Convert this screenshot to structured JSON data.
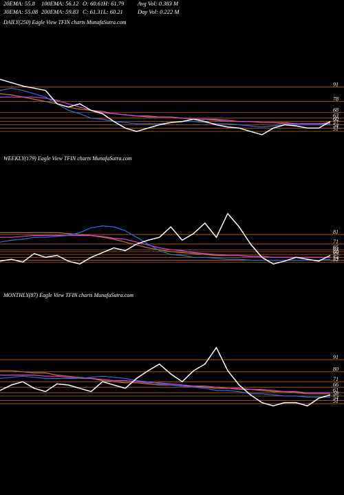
{
  "header": {
    "rows": [
      [
        "20EMA: 55.8",
        "100EMA: 56.12",
        "O: 60.61",
        "H: 61.79",
        "Avg Vol: 0.383  M"
      ],
      [
        "30EMA: 55.08",
        "200EMA: 59.83",
        "C: 61.31",
        "L: 60.21",
        "Day Vol: 0.222  M"
      ]
    ]
  },
  "chart_data": [
    {
      "type": "line",
      "title": "DAILY(250) Eagle  View  TFIN  charts MunafaSutra.com",
      "ylim": [
        30,
        151
      ],
      "yticks": [
        91,
        78,
        68,
        63,
        60,
        57,
        54,
        51
      ],
      "tick_color": "#b5651d",
      "categories": [
        null,
        null,
        null,
        null,
        null,
        null,
        null,
        null,
        null,
        null,
        null,
        null,
        null,
        null,
        null,
        null,
        null,
        null,
        null,
        null,
        null,
        null,
        null,
        null,
        null,
        null,
        null,
        null,
        null,
        null
      ],
      "series": [
        {
          "color": "#c07a30",
          "values": [
            85,
            84,
            82,
            80,
            78,
            76,
            73,
            71,
            70,
            69,
            67,
            66,
            65,
            65,
            64,
            64,
            63,
            62,
            62,
            61,
            60,
            60,
            60,
            59,
            59,
            59,
            58,
            58,
            58,
            58
          ]
        },
        {
          "color": "#e040e0",
          "values": [
            82,
            82,
            82,
            82,
            81,
            79,
            76,
            73,
            70,
            68,
            67,
            66,
            65,
            64,
            64,
            64,
            63,
            62,
            62,
            62,
            61,
            60,
            60,
            59,
            59,
            58,
            58,
            58,
            58,
            59
          ]
        },
        {
          "color": "#2f6fe0",
          "values": [
            88,
            90,
            88,
            85,
            82,
            76,
            70,
            67,
            63,
            62,
            60,
            59,
            58,
            58,
            58,
            59,
            60,
            60,
            59,
            58,
            58,
            57,
            56,
            55,
            56,
            57,
            57,
            57,
            57,
            57
          ]
        },
        {
          "color": "#ffffff",
          "values": [
            98,
            95,
            92,
            90,
            88,
            76,
            73,
            76,
            70,
            67,
            60,
            54,
            51,
            54,
            57,
            59,
            60,
            62,
            60,
            57,
            55,
            54,
            51,
            48,
            54,
            57,
            56,
            54,
            54,
            60
          ]
        }
      ]
    },
    {
      "type": "line",
      "title": "WEEKLY(179) Eagle  View  TFIN  charts MunafaSutra.com",
      "ylim": [
        24,
        154
      ],
      "yticks": [
        81,
        71,
        65,
        63,
        60,
        57,
        54,
        52
      ],
      "tick_color": "#b5651d",
      "categories": [
        null,
        null,
        null,
        null,
        null,
        null,
        null,
        null,
        null,
        null,
        null,
        null,
        null,
        null,
        null,
        null,
        null,
        null,
        null,
        null,
        null,
        null,
        null,
        null,
        null,
        null,
        null,
        null,
        null,
        null
      ],
      "series": [
        {
          "color": "#c07a30",
          "values": [
            83,
            83,
            83,
            83,
            83,
            83,
            82,
            81,
            80,
            78,
            76,
            73,
            70,
            67,
            65,
            63,
            62,
            61,
            60,
            59,
            59,
            59,
            58,
            58,
            57,
            57,
            57,
            57,
            57,
            57
          ]
        },
        {
          "color": "#e040e0",
          "values": [
            78,
            78,
            79,
            80,
            80,
            80,
            80,
            80,
            80,
            79,
            77,
            76,
            73,
            70,
            67,
            65,
            64,
            62,
            61,
            60,
            59,
            59,
            58,
            58,
            57,
            57,
            57,
            57,
            57,
            57
          ]
        },
        {
          "color": "#2f6fe0",
          "values": [
            73,
            75,
            76,
            78,
            78,
            79,
            80,
            83,
            88,
            90,
            89,
            85,
            78,
            71,
            64,
            60,
            59,
            57,
            57,
            56,
            55,
            55,
            54,
            54,
            54,
            54,
            54,
            54,
            54,
            55
          ]
        },
        {
          "color": "#ffffff",
          "values": [
            53,
            55,
            52,
            61,
            57,
            59,
            53,
            50,
            57,
            62,
            67,
            64,
            71,
            75,
            78,
            89,
            75,
            82,
            93,
            78,
            103,
            89,
            71,
            57,
            50,
            53,
            57,
            55,
            53,
            59
          ]
        }
      ]
    },
    {
      "type": "line",
      "title": "MONTHLY(87) Eagle  View  TFIN  charts MunafaSutra.com",
      "ylim": [
        43,
        143
      ],
      "yticks": [
        91,
        80,
        71,
        66,
        61,
        58,
        54,
        51
      ],
      "tick_color": "#b5651d",
      "categories": [
        null,
        null,
        null,
        null,
        null,
        null,
        null,
        null,
        null,
        null,
        null,
        null,
        null,
        null,
        null,
        null,
        null,
        null,
        null,
        null,
        null,
        null,
        null,
        null,
        null,
        null,
        null,
        null,
        null,
        null
      ],
      "series": [
        {
          "color": "#c07a30",
          "values": [
            81,
            81,
            80,
            79,
            79,
            77,
            76,
            75,
            74,
            72,
            71,
            70,
            70,
            69,
            68,
            68,
            67,
            67,
            66,
            65,
            65,
            64,
            64,
            63,
            62,
            62,
            61,
            60,
            60,
            60
          ]
        },
        {
          "color": "#e040e0",
          "values": [
            77,
            77,
            77,
            77,
            76,
            76,
            75,
            74,
            74,
            73,
            72,
            72,
            71,
            70,
            70,
            69,
            68,
            67,
            67,
            66,
            65,
            65,
            64,
            64,
            63,
            62,
            62,
            61,
            61,
            61
          ]
        },
        {
          "color": "#2f6fe0",
          "values": [
            74,
            75,
            76,
            75,
            74,
            74,
            74,
            74,
            75,
            76,
            75,
            74,
            72,
            71,
            69,
            68,
            67,
            66,
            65,
            63,
            63,
            62,
            60,
            60,
            59,
            58,
            58,
            57,
            57,
            57
          ]
        },
        {
          "color": "#ffffff",
          "values": [
            63,
            68,
            71,
            65,
            62,
            69,
            68,
            65,
            62,
            71,
            68,
            65,
            74,
            81,
            87,
            78,
            71,
            81,
            87,
            102,
            81,
            68,
            59,
            52,
            49,
            52,
            52,
            49,
            56,
            59
          ]
        }
      ]
    }
  ]
}
